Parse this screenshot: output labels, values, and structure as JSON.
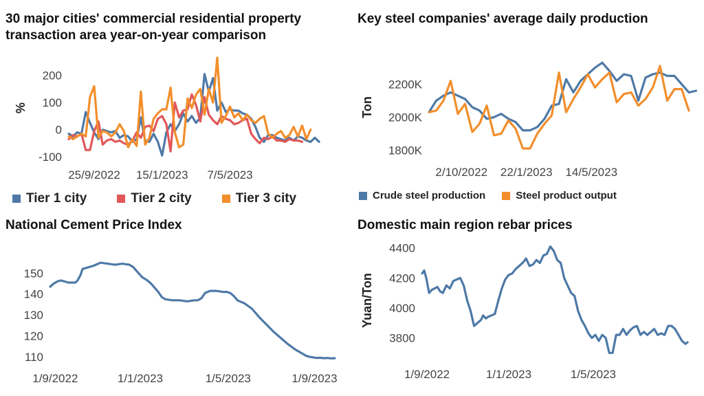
{
  "chart_data": [
    {
      "id": "c1",
      "type": "line",
      "title": "30 major cities' commercial residential property transaction area year-on-year comparison",
      "ylabel": "%",
      "xlabel": "",
      "ylim": [
        -110,
        270
      ],
      "yticks": [
        -100,
        0,
        100,
        200
      ],
      "ytick_labels": [
        "-100",
        "0",
        "100",
        "200"
      ],
      "xlim": [
        0,
        64
      ],
      "xticks": [
        6,
        22,
        38
      ],
      "xtick_labels": [
        "25/9/2022",
        "15/1/2023",
        "7/5/2023"
      ],
      "legend": "bottom",
      "legend_size": "large",
      "series": [
        {
          "name": "Tier 1 city",
          "color": "#4E79A7",
          "values": [
            -15,
            -25,
            -10,
            -15,
            65,
            25,
            -10,
            -35,
            0,
            -5,
            -10,
            -5,
            -30,
            -20,
            -25,
            -45,
            -35,
            45,
            -40,
            -45,
            -15,
            -45,
            -95,
            -10,
            20,
            -5,
            20,
            60,
            30,
            50,
            25,
            45,
            205,
            140,
            190,
            70,
            100,
            65,
            75,
            70,
            70,
            60,
            55,
            40,
            10,
            -30,
            -45,
            -20,
            -20,
            -30,
            -35,
            -40,
            -30,
            -40,
            -25,
            -30,
            -40,
            -45,
            -30,
            -45
          ]
        },
        {
          "name": "Tier 2 city",
          "color": "#E15759",
          "values": [
            -35,
            -20,
            -25,
            -15,
            -75,
            -75,
            -5,
            30,
            -55,
            -40,
            -35,
            -45,
            -40,
            -50,
            -55,
            -40,
            -10,
            -30,
            10,
            15,
            -5,
            40,
            50,
            20,
            -80,
            100,
            45,
            70,
            75,
            130,
            90,
            30,
            120,
            55,
            35,
            20,
            50,
            40,
            35,
            20,
            25,
            35,
            40,
            -15,
            -35,
            -50,
            -30,
            -35,
            -25,
            -40,
            -40,
            -45,
            -35,
            -40,
            -40,
            -45
          ]
        },
        {
          "name": "Tier 3 city",
          "color": "#F28E2B",
          "values": [
            -25,
            -35,
            -25,
            -15,
            -25,
            120,
            160,
            -30,
            -5,
            -10,
            -25,
            -10,
            20,
            -5,
            -65,
            -35,
            -60,
            140,
            -55,
            -30,
            40,
            60,
            75,
            75,
            155,
            -10,
            -65,
            -55,
            115,
            80,
            130,
            150,
            55,
            150,
            100,
            265,
            25,
            50,
            85,
            45,
            60,
            35,
            55,
            35,
            25,
            40,
            50,
            -15,
            -30,
            -15,
            -5,
            -30,
            -20,
            10,
            -25,
            15,
            -35,
            0
          ]
        }
      ]
    },
    {
      "id": "c2",
      "type": "line",
      "title": "Key steel companies' average daily production",
      "ylabel": "Ton",
      "xlabel": "",
      "ylim": [
        1760,
        2360
      ],
      "yticks": [
        1800,
        2000,
        2200
      ],
      "ytick_labels": [
        "1800K",
        "2000K",
        "2200K"
      ],
      "xlim": [
        0,
        36
      ],
      "xticks": [
        4.5,
        13.5,
        22.5
      ],
      "xtick_labels": [
        "2/10/2022",
        "22/1/2023",
        "14/5/2023"
      ],
      "legend": "bottom",
      "legend_size": "small",
      "series": [
        {
          "name": "Crude steel production",
          "color": "#4E79A7",
          "values": [
            2030,
            2100,
            2130,
            2150,
            2130,
            2110,
            2060,
            2040,
            1990,
            2000,
            2020,
            1990,
            1970,
            1920,
            1920,
            1940,
            1990,
            2070,
            2080,
            2230,
            2150,
            2220,
            2260,
            2300,
            2330,
            2280,
            2220,
            2260,
            2250,
            2100,
            2240,
            2260,
            2270,
            2250,
            2250,
            2200,
            2150,
            2160
          ]
        },
        {
          "name": "Steel product output",
          "color": "#F28E2B",
          "values": [
            2030,
            2040,
            2100,
            2220,
            2020,
            2080,
            1910,
            1960,
            2070,
            1890,
            1900,
            1980,
            1930,
            1810,
            1810,
            1900,
            1960,
            2010,
            2270,
            2030,
            2110,
            2180,
            2260,
            2180,
            2230,
            2270,
            2090,
            2140,
            2150,
            2070,
            2110,
            2180,
            2310,
            2100,
            2170,
            2170,
            2040
          ]
        }
      ]
    },
    {
      "id": "c3",
      "type": "line",
      "title": "National Cement Price Index",
      "ylabel": "",
      "xlabel": "",
      "ylim": [
        107,
        157
      ],
      "yticks": [
        110,
        120,
        130,
        140,
        150
      ],
      "ytick_labels": [
        "110",
        "120",
        "130",
        "140",
        "150"
      ],
      "xlim": [
        0,
        398
      ],
      "xticks": [
        7,
        125,
        247,
        367
      ],
      "xtick_labels": [
        "1/9/2022",
        "1/1/2023",
        "1/5/2023",
        "1/9/2023"
      ],
      "series": [
        {
          "name": "",
          "color": "#4E79A7",
          "x": [
            0,
            5,
            10,
            15,
            20,
            25,
            30,
            35,
            38,
            42,
            45,
            50,
            60,
            70,
            80,
            90,
            100,
            110,
            115,
            120,
            128,
            135,
            140,
            145,
            150,
            155,
            160,
            170,
            180,
            190,
            200,
            205,
            210,
            215,
            222,
            230,
            240,
            245,
            250,
            255,
            260,
            270,
            280,
            290,
            300,
            310,
            320,
            330,
            340,
            350,
            355,
            360,
            365,
            370,
            375,
            380,
            385,
            390,
            395
          ],
          "values": [
            143.5,
            145,
            146,
            146.5,
            146,
            145.5,
            145.5,
            145.5,
            146.5,
            149,
            152,
            152.5,
            153.5,
            155,
            154.5,
            154,
            154.5,
            154,
            153,
            151,
            148,
            146.5,
            145,
            143,
            141,
            138.5,
            137.5,
            137,
            137,
            136.5,
            137,
            137,
            138,
            140.5,
            141.5,
            141.5,
            141,
            141,
            140.5,
            139,
            137,
            135.5,
            133,
            129,
            125.5,
            122,
            119,
            116,
            113.5,
            111.5,
            110.5,
            110,
            109.7,
            109.4,
            109.5,
            109.3,
            109.4,
            109.2,
            109.3
          ]
        }
      ]
    },
    {
      "id": "c4",
      "type": "line",
      "title": "Domestic main region rebar prices",
      "ylabel": "Yuan/Ton",
      "xlabel": "",
      "ylim": [
        3660,
        4440
      ],
      "yticks": [
        3800,
        4000,
        4200,
        4400
      ],
      "ytick_labels": [
        "3800",
        "4000",
        "4200",
        "4400"
      ],
      "xlim": [
        0,
        385
      ],
      "xticks": [
        7,
        125,
        247
      ],
      "xtick_labels": [
        "1/9/2022",
        "1/1/2023",
        "1/5/2023"
      ],
      "series": [
        {
          "name": "",
          "color": "#4E79A7",
          "x": [
            0,
            3,
            6,
            10,
            14,
            18,
            22,
            26,
            30,
            35,
            40,
            45,
            50,
            55,
            60,
            65,
            70,
            75,
            80,
            85,
            88,
            92,
            95,
            100,
            105,
            110,
            115,
            120,
            125,
            130,
            135,
            140,
            145,
            150,
            155,
            160,
            165,
            170,
            175,
            180,
            185,
            190,
            195,
            200,
            205,
            210,
            215,
            220,
            225,
            230,
            235,
            240,
            245,
            250,
            255,
            260,
            265,
            270,
            275,
            280,
            285,
            290,
            295,
            300,
            305,
            310,
            315,
            320,
            325,
            330,
            335,
            340,
            345,
            350,
            355,
            360,
            365,
            370,
            375,
            380,
            383
          ],
          "values": [
            4230,
            4250,
            4200,
            4100,
            4120,
            4130,
            4140,
            4110,
            4100,
            4150,
            4130,
            4180,
            4190,
            4200,
            4150,
            4050,
            3980,
            3880,
            3900,
            3920,
            3950,
            3930,
            3940,
            3950,
            3960,
            4050,
            4130,
            4190,
            4220,
            4230,
            4260,
            4280,
            4300,
            4330,
            4280,
            4290,
            4320,
            4300,
            4350,
            4360,
            4410,
            4380,
            4320,
            4300,
            4200,
            4150,
            4100,
            4080,
            3980,
            3920,
            3880,
            3830,
            3800,
            3820,
            3780,
            3820,
            3800,
            3700,
            3700,
            3820,
            3820,
            3860,
            3820,
            3850,
            3870,
            3880,
            3820,
            3840,
            3820,
            3840,
            3860,
            3820,
            3830,
            3820,
            3880,
            3880,
            3860,
            3820,
            3780,
            3760,
            3770
          ]
        }
      ]
    }
  ]
}
